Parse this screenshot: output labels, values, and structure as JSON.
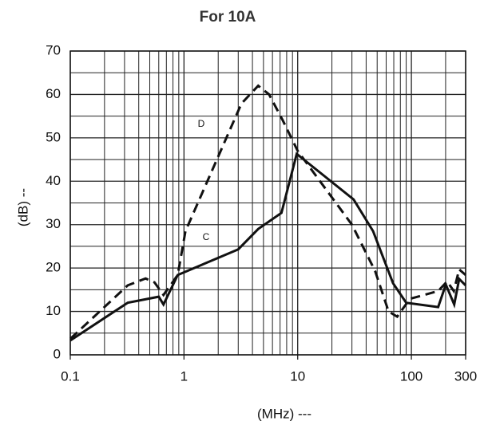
{
  "chart_data": {
    "type": "line",
    "title": "For 10A",
    "x_label": "(MHz) ---",
    "y_label": "(dB) --",
    "xscale": "log",
    "xlim": [
      0.1,
      300
    ],
    "ylim": [
      0,
      70
    ],
    "xticks": [
      0.1,
      1,
      10,
      100,
      300
    ],
    "yticks": [
      0,
      10,
      20,
      30,
      40,
      50,
      60,
      70
    ],
    "x_minor_ticks": [
      0.2,
      0.3,
      0.4,
      0.5,
      0.6,
      0.7,
      0.8,
      0.9,
      2,
      3,
      4,
      5,
      6,
      7,
      8,
      9,
      20,
      30,
      40,
      50,
      60,
      70,
      80,
      90,
      200
    ],
    "y_minor_ticks": [
      5,
      15,
      25,
      35,
      45,
      55,
      65
    ],
    "grid": true,
    "series": [
      {
        "name": "C",
        "color": "#111111",
        "dash": "solid",
        "x": [
          0.1,
          0.32,
          0.6,
          0.66,
          0.88,
          3.0,
          4.5,
          7.2,
          9.8,
          31,
          46,
          69,
          90,
          172,
          201,
          238,
          263,
          300
        ],
        "values": [
          3.3,
          12,
          13.4,
          11.6,
          18.4,
          24.3,
          29,
          32.7,
          46.3,
          35.8,
          28.5,
          16.5,
          12,
          11,
          16.2,
          11.6,
          17.5,
          16
        ]
      },
      {
        "name": "D",
        "color": "#111111",
        "dash": "dashed",
        "x": [
          0.1,
          0.32,
          0.46,
          0.55,
          0.66,
          0.88,
          1.03,
          3.2,
          4.5,
          5.6,
          7.4,
          10,
          30,
          48,
          63,
          75,
          97,
          172,
          206,
          236,
          263,
          300
        ],
        "values": [
          3.7,
          16,
          17.6,
          16.7,
          13.8,
          18.4,
          28.5,
          57.9,
          62,
          60,
          54,
          47,
          30,
          19.3,
          10,
          8.8,
          12.9,
          14.7,
          16.9,
          14.7,
          19.7,
          18.4
        ]
      }
    ]
  }
}
